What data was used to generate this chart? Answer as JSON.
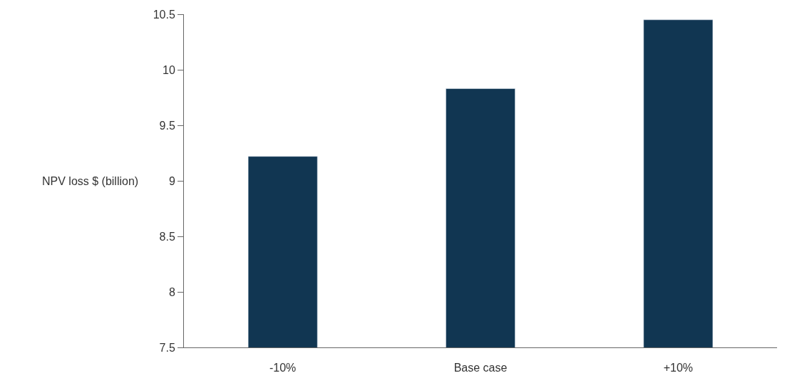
{
  "chart_data": {
    "type": "bar",
    "ylabel": "NPV loss $ (billion)",
    "categories": [
      "-10%",
      "Base case",
      "+10%"
    ],
    "values": [
      9.22,
      9.83,
      10.45
    ],
    "color": "#113652",
    "ylim": [
      7.5,
      10.5
    ],
    "yticks": [
      7.5,
      8,
      8.5,
      9,
      9.5,
      10,
      10.5
    ]
  }
}
